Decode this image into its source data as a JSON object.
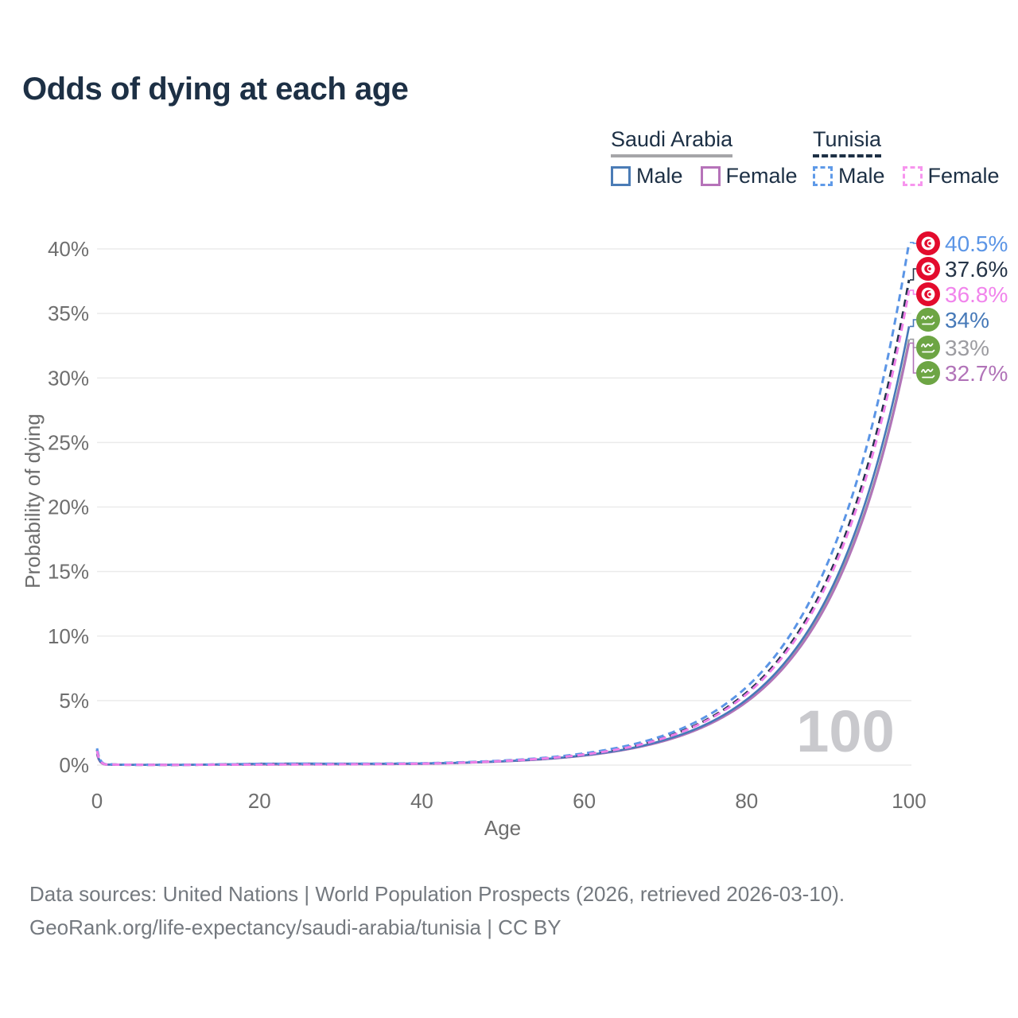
{
  "title": "Odds of dying at each age",
  "colors": {
    "title_text": "#1d3045",
    "legend_text": "#1d3045",
    "axis_text": "#6e6e6e",
    "grid": "#ebebeb",
    "watermark": "#c9c9cd",
    "footer_text": "#74797f",
    "tunisia_flag_red": "#e30b2d",
    "saudi_flag_green": "#6da544"
  },
  "legend": {
    "groups": [
      {
        "name": "Saudi Arabia",
        "line_style": "solid",
        "line_color": "#a5a5a8",
        "items": [
          {
            "label": "Male",
            "style": "solid",
            "color": "#4b7cb6"
          },
          {
            "label": "Female",
            "style": "solid",
            "color": "#b673b9"
          }
        ]
      },
      {
        "name": "Tunisia",
        "line_style": "dashed",
        "line_color": "#1d3045",
        "items": [
          {
            "label": "Male",
            "style": "dashed",
            "color": "#5f9ae8"
          },
          {
            "label": "Female",
            "style": "dashed",
            "color": "#f795ee"
          }
        ]
      }
    ]
  },
  "chart_data": {
    "type": "line",
    "title": "Odds of dying at each age",
    "xlabel": "Age",
    "ylabel": "Probability of dying",
    "xlim": [
      0,
      100
    ],
    "ylim_percent": [
      0,
      40
    ],
    "x_ticks": [
      0,
      20,
      40,
      60,
      80,
      100
    ],
    "y_ticks_percent": [
      0,
      5,
      10,
      15,
      20,
      25,
      30,
      35,
      40
    ],
    "grid": true,
    "legend_position": "top-right",
    "watermark_age": "100",
    "ages": [
      0,
      1,
      3,
      5,
      10,
      15,
      20,
      25,
      30,
      35,
      40,
      45,
      50,
      55,
      60,
      65,
      70,
      75,
      80,
      85,
      90,
      95,
      100
    ],
    "series": [
      {
        "name": "Saudi Arabia — Both sexes",
        "country": "Saudi Arabia",
        "sex": "both",
        "style": "solid",
        "color": "#9c9ca1",
        "end_label": "33%",
        "end_value_percent": 33.0,
        "values_percent": [
          0.85,
          0.045,
          0.022,
          0.018,
          0.016,
          0.045,
          0.08,
          0.09,
          0.09,
          0.09,
          0.11,
          0.18,
          0.29,
          0.46,
          0.74,
          1.19,
          1.91,
          3.07,
          4.93,
          7.93,
          12.8,
          20.5,
          33.0
        ]
      },
      {
        "name": "Saudi Arabia — Female",
        "country": "Saudi Arabia",
        "sex": "female",
        "style": "solid",
        "color": "#b173b8",
        "end_label": "32.7%",
        "end_value_percent": 32.7,
        "values_percent": [
          0.8,
          0.04,
          0.02,
          0.016,
          0.013,
          0.03,
          0.04,
          0.05,
          0.06,
          0.07,
          0.09,
          0.17,
          0.28,
          0.45,
          0.73,
          1.18,
          1.89,
          3.04,
          4.89,
          7.86,
          12.6,
          20.3,
          32.7
        ]
      },
      {
        "name": "Saudi Arabia — Male",
        "country": "Saudi Arabia",
        "sex": "male",
        "style": "solid",
        "color": "#4679b8",
        "end_label": "34%",
        "end_value_percent": 34.0,
        "values_percent": [
          0.9,
          0.05,
          0.025,
          0.02,
          0.02,
          0.06,
          0.11,
          0.12,
          0.11,
          0.11,
          0.13,
          0.19,
          0.3,
          0.47,
          0.76,
          1.22,
          1.97,
          3.16,
          5.08,
          8.17,
          13.1,
          21.1,
          34.0
        ]
      },
      {
        "name": "Tunisia — Both sexes",
        "country": "Tunisia",
        "sex": "both",
        "style": "dashed",
        "color": "#223349",
        "end_label": "37.6%",
        "end_value_percent": 37.6,
        "values_percent": [
          1.2,
          0.06,
          0.028,
          0.022,
          0.018,
          0.04,
          0.07,
          0.08,
          0.08,
          0.09,
          0.12,
          0.2,
          0.33,
          0.52,
          0.84,
          1.35,
          2.17,
          3.49,
          5.62,
          9.04,
          14.5,
          23.4,
          37.6
        ]
      },
      {
        "name": "Tunisia — Male",
        "country": "Tunisia",
        "sex": "male",
        "style": "dashed",
        "color": "#5b95e6",
        "end_label": "40.5%",
        "end_value_percent": 40.5,
        "values_percent": [
          1.3,
          0.07,
          0.03,
          0.025,
          0.02,
          0.05,
          0.09,
          0.1,
          0.1,
          0.11,
          0.14,
          0.22,
          0.35,
          0.56,
          0.91,
          1.46,
          2.34,
          3.76,
          6.05,
          9.74,
          15.7,
          25.2,
          40.5
        ]
      },
      {
        "name": "Tunisia — Female",
        "country": "Tunisia",
        "sex": "female",
        "style": "dashed",
        "color": "#ee80e8",
        "end_label": "36.8%",
        "end_value_percent": 36.8,
        "values_percent": [
          1.1,
          0.055,
          0.025,
          0.02,
          0.015,
          0.03,
          0.04,
          0.05,
          0.06,
          0.08,
          0.11,
          0.19,
          0.32,
          0.51,
          0.82,
          1.32,
          2.13,
          3.42,
          5.5,
          8.85,
          14.2,
          22.9,
          36.8
        ]
      }
    ],
    "end_labels": [
      {
        "text": "40.5%",
        "color": "#5b95e6",
        "flag": "tunisia",
        "series": "Tunisia — Male",
        "value_percent": 40.5
      },
      {
        "text": "37.6%",
        "color": "#253447",
        "flag": "tunisia",
        "series": "Tunisia — Both sexes",
        "value_percent": 37.6
      },
      {
        "text": "36.8%",
        "color": "#f184ec",
        "flag": "tunisia",
        "series": "Tunisia — Female",
        "value_percent": 36.8
      },
      {
        "text": "34%",
        "color": "#4679b8",
        "flag": "saudi-arabia",
        "series": "Saudi Arabia — Male",
        "value_percent": 34.0
      },
      {
        "text": "33%",
        "color": "#9c9ca1",
        "flag": "saudi-arabia",
        "series": "Saudi Arabia — Both sexes",
        "value_percent": 33.0
      },
      {
        "text": "32.7%",
        "color": "#b173b8",
        "flag": "saudi-arabia",
        "series": "Saudi Arabia — Female",
        "value_percent": 32.7
      }
    ]
  },
  "footer": {
    "line1": "Data sources: United Nations | World Population Prospects (2026, retrieved 2026-03-10).",
    "line2": "GeoRank.org/life-expectancy/saudi-arabia/tunisia | CC BY"
  }
}
